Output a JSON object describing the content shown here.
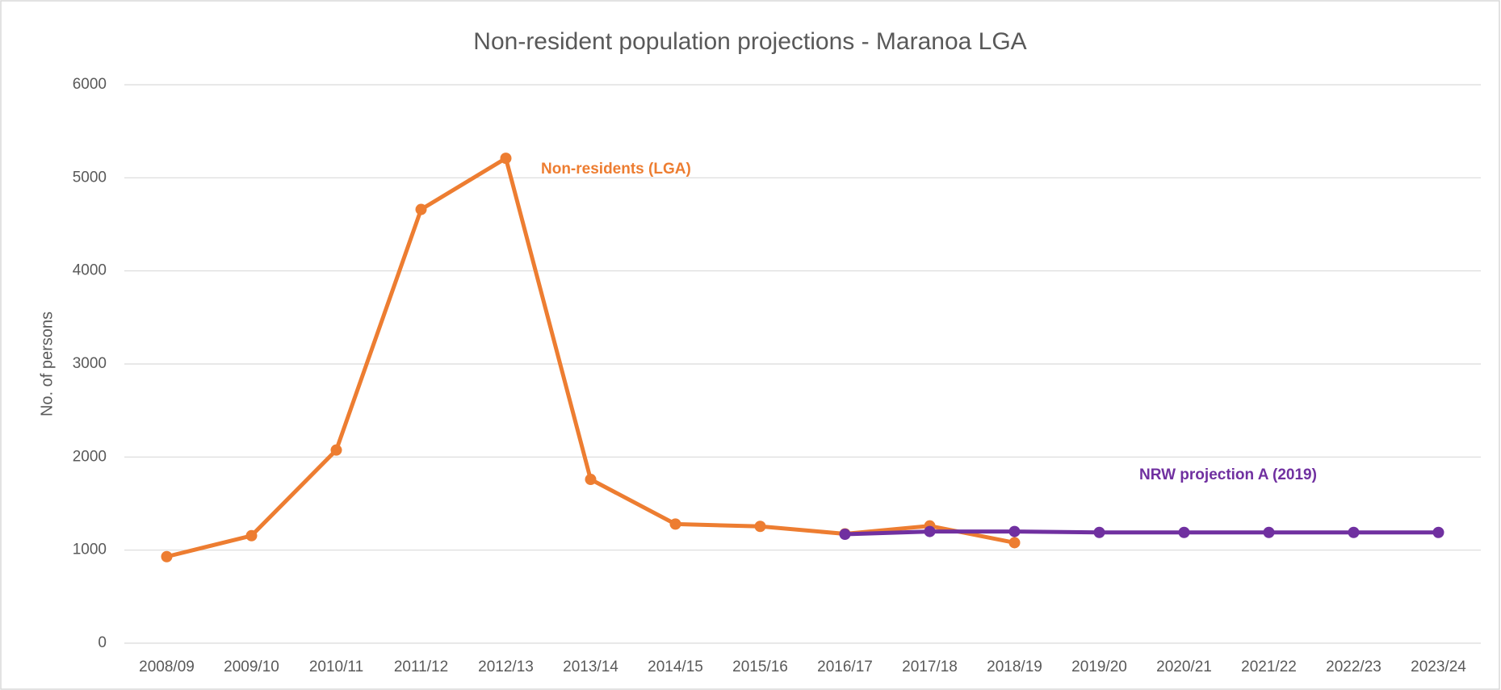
{
  "chart_data": {
    "type": "line",
    "title": "Non-resident population projections - Maranoa LGA",
    "y_label": "No. of persons",
    "categories": [
      "2008/09",
      "2009/10",
      "2010/11",
      "2011/12",
      "2012/13",
      "2013/14",
      "2014/15",
      "2015/16",
      "2016/17",
      "2017/18",
      "2018/19",
      "2019/20",
      "2020/21",
      "2021/22",
      "2022/23",
      "2023/24"
    ],
    "series": [
      {
        "name": "Non-residents (LGA)",
        "color": "#ED7D31",
        "values": [
          930,
          1155,
          2075,
          4660,
          5210,
          1760,
          1280,
          1255,
          1175,
          1260,
          1080,
          null,
          null,
          null,
          null,
          null
        ]
      },
      {
        "name": "NRW projection A (2019)",
        "color": "#7030A0",
        "values": [
          null,
          null,
          null,
          null,
          null,
          null,
          null,
          null,
          1170,
          1200,
          1200,
          1190,
          1190,
          1190,
          1190,
          1190
        ]
      }
    ],
    "ylim": [
      0,
      6000
    ],
    "yticks": [
      0,
      1000,
      2000,
      3000,
      4000,
      5000,
      6000
    ],
    "grid": true
  }
}
